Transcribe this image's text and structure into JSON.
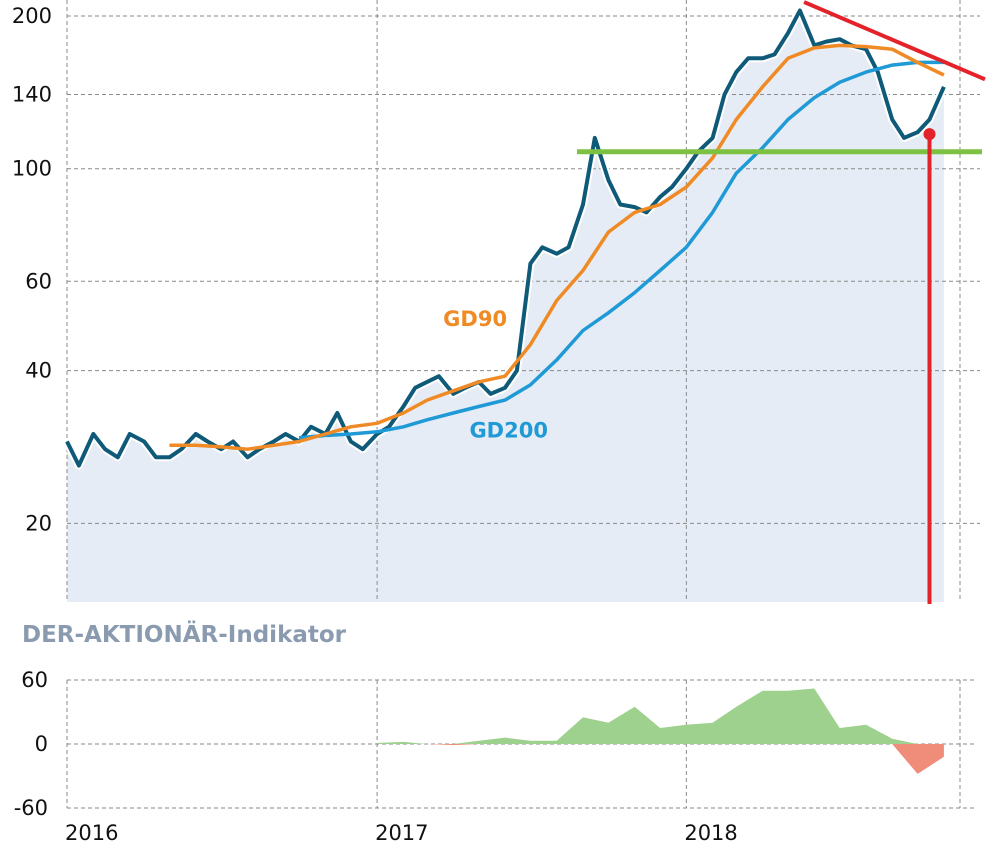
{
  "chart_data": [
    {
      "type": "line",
      "title": "",
      "xlabel": "",
      "ylabel": "",
      "scale": "log",
      "ylim": [
        14,
        215
      ],
      "y_ticks": [
        "200",
        "140",
        "100",
        "60",
        "40",
        "20"
      ],
      "x_ticks": [
        "2016",
        "2017",
        "2018"
      ],
      "grid": true,
      "colors": {
        "price": "#0e5a78",
        "gd90": "#f08a24",
        "gd200": "#1f9ad6",
        "support": "#7dc142",
        "resistance": "#e4222a",
        "area": "#e6ecf5"
      },
      "series": [
        {
          "x": [
            "2016-01-01",
            "2016-01-15",
            "2016-02-01",
            "2016-02-15",
            "2016-03-01",
            "2016-03-15",
            "2016-04-01",
            "2016-04-15",
            "2016-05-01",
            "2016-05-15",
            "2016-06-01",
            "2016-06-15",
            "2016-07-01",
            "2016-07-15",
            "2016-08-01",
            "2016-08-15",
            "2016-09-01",
            "2016-09-15",
            "2016-10-01",
            "2016-10-15",
            "2016-11-01",
            "2016-11-15",
            "2016-12-01",
            "2016-12-15",
            "2017-01-01",
            "2017-01-15",
            "2017-02-01",
            "2017-02-15",
            "2017-03-01",
            "2017-03-15",
            "2017-04-01",
            "2017-04-15",
            "2017-05-01",
            "2017-05-15",
            "2017-06-01",
            "2017-06-15",
            "2017-07-01",
            "2017-07-15",
            "2017-08-01",
            "2017-08-15",
            "2017-09-01",
            "2017-09-15",
            "2017-10-01",
            "2017-10-15",
            "2017-11-01",
            "2017-11-15",
            "2017-12-01",
            "2017-12-15",
            "2018-01-01",
            "2018-01-15",
            "2018-02-01",
            "2018-02-15",
            "2018-03-01",
            "2018-03-15",
            "2018-04-01",
            "2018-04-15",
            "2018-05-01",
            "2018-05-15",
            "2018-06-01",
            "2018-06-15",
            "2018-07-01",
            "2018-07-15",
            "2018-08-01",
            "2018-08-15",
            "2018-09-01",
            "2018-09-15",
            "2018-10-01",
            "2018-10-15",
            "2018-11-01"
          ],
          "values": [
            29,
            26,
            30,
            28,
            27,
            30,
            29,
            27,
            27,
            28,
            30,
            29,
            28,
            29,
            27,
            28,
            29,
            30,
            29,
            31,
            30,
            33,
            29,
            28,
            30,
            31,
            34,
            37,
            38,
            39,
            36,
            37,
            38,
            36,
            37,
            40,
            65,
            70,
            68,
            70,
            85,
            115,
            95,
            85,
            84,
            82,
            88,
            92,
            100,
            108,
            115,
            140,
            155,
            165,
            165,
            168,
            185,
            205,
            175,
            178,
            180,
            175,
            172,
            155,
            125,
            115,
            118,
            125,
            145
          ]
        },
        {
          "name": "GD90",
          "x": [
            "2016-05-01",
            "2016-06-01",
            "2016-07-01",
            "2016-08-01",
            "2016-09-01",
            "2016-10-01",
            "2016-11-01",
            "2016-12-01",
            "2017-01-01",
            "2017-02-01",
            "2017-03-01",
            "2017-04-01",
            "2017-05-01",
            "2017-06-01",
            "2017-07-01",
            "2017-08-01",
            "2017-09-01",
            "2017-10-01",
            "2017-11-01",
            "2017-12-01",
            "2018-01-01",
            "2018-02-01",
            "2018-03-01",
            "2018-04-01",
            "2018-05-01",
            "2018-06-01",
            "2018-07-01",
            "2018-08-01",
            "2018-09-01",
            "2018-10-01",
            "2018-11-01"
          ],
          "values": [
            28.5,
            28.5,
            28.3,
            28.0,
            28.5,
            29.0,
            30.0,
            31.0,
            31.5,
            33.0,
            35.0,
            36.5,
            38.0,
            39.0,
            45.0,
            55.0,
            63.0,
            75.0,
            82.0,
            85.0,
            92.0,
            105.0,
            125.0,
            145.0,
            165.0,
            173.0,
            175.0,
            174.0,
            172.0,
            162.0,
            153.0
          ]
        },
        {
          "name": "GD200",
          "x": [
            "2016-10-01",
            "2016-11-01",
            "2016-12-01",
            "2017-01-01",
            "2017-02-01",
            "2017-03-01",
            "2017-04-01",
            "2017-05-01",
            "2017-06-01",
            "2017-07-01",
            "2017-08-01",
            "2017-09-01",
            "2017-10-01",
            "2017-11-01",
            "2017-12-01",
            "2018-01-01",
            "2018-02-01",
            "2018-03-01",
            "2018-04-01",
            "2018-05-01",
            "2018-06-01",
            "2018-07-01",
            "2018-08-01",
            "2018-09-01",
            "2018-10-01",
            "2018-11-01"
          ],
          "values": [
            29.5,
            29.8,
            30.0,
            30.3,
            31.0,
            32.0,
            33.0,
            34.0,
            35.0,
            37.5,
            42.0,
            48.0,
            52.0,
            57.0,
            63.0,
            70.0,
            82.0,
            98.0,
            110.0,
            125.0,
            138.0,
            148.0,
            155.0,
            160.0,
            162.0,
            162.0
          ]
        }
      ]
    },
    {
      "type": "area",
      "title": "DER-AKTIONÄR-Indikator",
      "xlabel": "",
      "ylabel": "",
      "ylim": [
        -60,
        60
      ],
      "y_ticks": [
        "60",
        "0",
        "-60"
      ],
      "x_ticks": [
        "2016",
        "2017",
        "2018"
      ],
      "grid": true,
      "colors": {
        "positive": "#9fd18e",
        "negative": "#f08c7a"
      },
      "series": [
        {
          "x": [
            "2017-01-01",
            "2017-02-01",
            "2017-03-01",
            "2017-04-01",
            "2017-05-01",
            "2017-06-01",
            "2017-07-01",
            "2017-08-01",
            "2017-09-01",
            "2017-10-01",
            "2017-11-01",
            "2017-12-01",
            "2018-01-01",
            "2018-02-01",
            "2018-03-01",
            "2018-04-01",
            "2018-05-01",
            "2018-06-01",
            "2018-07-01",
            "2018-08-01",
            "2018-09-01",
            "2018-10-01",
            "2018-11-01"
          ],
          "values": [
            1,
            2,
            0,
            -1,
            3,
            6,
            3,
            3,
            25,
            20,
            35,
            15,
            18,
            20,
            35,
            50,
            50,
            52,
            15,
            18,
            5,
            -28,
            -12
          ]
        }
      ]
    }
  ],
  "labels": {
    "gd90": "GD90",
    "gd200": "GD200",
    "indicator_title": "DER-AKTIONÄR-Indikator"
  }
}
